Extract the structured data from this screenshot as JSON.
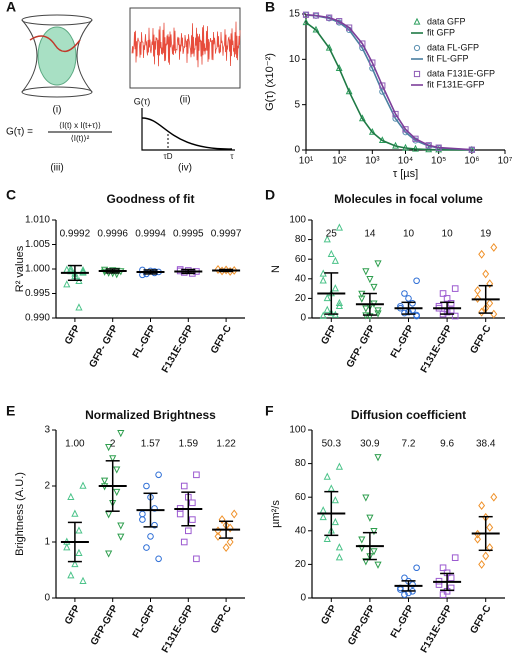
{
  "panel_a": {
    "panel": "A",
    "label_i": "(i)",
    "label_ii": "(ii)",
    "label_iii": "(iii)",
    "label_iv": "(iv)",
    "formula_lhs": "G(τ) =",
    "formula_num": "⟨I(t) x I(t+τ)⟩",
    "formula_den": "⟨I(t)⟩²",
    "g_label": "G(τ)",
    "tau_d": "τD",
    "tau": "τ"
  },
  "chart_data": [
    {
      "type": "line",
      "panel": "B",
      "y_label": "G(τ) (x10⁻²)",
      "x_label": "τ [µs]",
      "xscale": "log",
      "x": [
        10,
        20,
        50,
        100,
        200,
        500,
        1000,
        2000,
        5000,
        10000,
        20000,
        50000,
        100000,
        1000000
      ],
      "xlim": [
        10,
        10000000
      ],
      "xticks": [
        {
          "value": 10,
          "label": "10¹"
        },
        {
          "value": 100,
          "label": "10²"
        },
        {
          "value": 1000,
          "label": "10³"
        },
        {
          "value": 10000,
          "label": "10⁴"
        },
        {
          "value": 100000,
          "label": "10⁵"
        },
        {
          "value": 1000000,
          "label": "10⁶"
        },
        {
          "value": 10000000,
          "label": "10⁷"
        }
      ],
      "ylim": [
        0,
        15
      ],
      "yticks": [
        0,
        5,
        10,
        15
      ],
      "series": [
        {
          "name": "data GFP",
          "color": "#2a9d5c",
          "marker": "triangle",
          "values": [
            14.06,
            13.24,
            11.25,
            9.0,
            6.43,
            3.46,
            1.96,
            1.05,
            0.44,
            0.22,
            0.11,
            0.04,
            0.02,
            0
          ]
        },
        {
          "name": "fit GFP",
          "color": "#1f7a45",
          "marker": "line",
          "values": [
            14.06,
            13.24,
            11.25,
            9.0,
            6.43,
            3.46,
            1.96,
            1.05,
            0.44,
            0.22,
            0.11,
            0.04,
            0.02,
            0
          ]
        },
        {
          "name": "data FL-GFP",
          "color": "#5a8fb0",
          "marker": "circle",
          "values": [
            14.9,
            14.8,
            14.52,
            14.06,
            13.24,
            11.25,
            9.0,
            6.43,
            3.46,
            1.96,
            1.05,
            0.44,
            0.22,
            0.02
          ]
        },
        {
          "name": "fit FL-GFP",
          "color": "#4a7fa0",
          "marker": "line",
          "values": [
            14.9,
            14.8,
            14.52,
            14.06,
            13.24,
            11.25,
            9.0,
            6.43,
            3.46,
            1.96,
            1.05,
            0.44,
            0.22,
            0.02
          ]
        },
        {
          "name": "data F131E-GFP",
          "color": "#8e5bb5",
          "marker": "square",
          "values": [
            14.92,
            14.84,
            14.6,
            14.21,
            13.5,
            11.74,
            9.64,
            7.11,
            3.97,
            2.28,
            1.24,
            0.52,
            0.26,
            0.03
          ]
        },
        {
          "name": "fit F131E-GFP",
          "color": "#7d3f9a",
          "marker": "line",
          "values": [
            14.92,
            14.84,
            14.6,
            14.21,
            13.5,
            11.74,
            9.64,
            7.11,
            3.97,
            2.28,
            1.24,
            0.52,
            0.26,
            0.03
          ]
        }
      ]
    },
    {
      "type": "dot",
      "panel": "C",
      "title": "Goodness of fit",
      "y_label": "R² values",
      "categories": [
        "GFP",
        "GFP- GFP",
        "FL-GFP",
        "F131E-GFP",
        "GFP-C"
      ],
      "colors": [
        "#4cc38a",
        "#2e9e4e",
        "#2f6fd6",
        "#9b59d0",
        "#f0922b"
      ],
      "markers": [
        "triangle",
        "triangle-down",
        "circle",
        "square",
        "diamond"
      ],
      "ylim": [
        0.99,
        1.01
      ],
      "yticks": [
        {
          "value": 0.99,
          "label": "0.990"
        },
        {
          "value": 0.995,
          "label": "0.995"
        },
        {
          "value": 1.0,
          "label": "1.000"
        },
        {
          "value": 1.005,
          "label": "1.005"
        },
        {
          "value": 1.01,
          "label": "1.010"
        }
      ],
      "values": [
        0.9992,
        0.9996,
        0.9994,
        0.9995,
        0.9997
      ],
      "errors": [
        0.0015,
        0.0004,
        0.0004,
        0.0004,
        0.0002
      ],
      "points": [
        [
          0.9992,
          0.9995,
          0.9985,
          0.9975,
          0.9998,
          0.9968,
          0.9921,
          0.999,
          1.0,
          0.9997,
          0.9994
        ],
        [
          0.9996,
          0.9993,
          0.9998,
          0.999,
          0.9999,
          0.9995,
          0.9997,
          0.9992
        ],
        [
          0.9994,
          0.999,
          0.9996,
          0.9992,
          0.9998,
          0.9988,
          0.9995
        ],
        [
          0.9995,
          0.9993,
          0.9997,
          0.9991,
          0.9999,
          0.9996
        ],
        [
          0.9997,
          0.9996,
          0.9998,
          0.9995,
          0.9999
        ]
      ]
    },
    {
      "type": "dot",
      "panel": "D",
      "title": "Molecules in focal volume",
      "y_label": "N",
      "categories": [
        "GFP",
        "GFP- GFP",
        "FL-GFP",
        "F131E-GFP",
        "GFP-C"
      ],
      "colors": [
        "#4cc38a",
        "#2e9e4e",
        "#2f6fd6",
        "#9b59d0",
        "#f0922b"
      ],
      "markers": [
        "triangle",
        "triangle-down",
        "circle",
        "square",
        "diamond"
      ],
      "ylim": [
        0,
        100
      ],
      "yticks": [
        0,
        20,
        40,
        60,
        80,
        100
      ],
      "values": [
        25,
        14,
        10,
        10,
        19
      ],
      "errors": [
        21,
        11,
        6,
        6,
        14
      ],
      "points": [
        [
          92,
          80,
          65,
          58,
          45,
          38,
          30,
          25,
          20,
          15,
          12,
          8,
          5,
          3,
          2
        ],
        [
          56,
          48,
          40,
          32,
          25,
          20,
          15,
          12,
          10,
          8,
          5,
          3,
          2
        ],
        [
          38,
          25,
          20,
          15,
          12,
          10,
          8,
          6,
          5,
          3,
          2
        ],
        [
          30,
          25,
          20,
          15,
          12,
          10,
          8,
          6,
          4,
          2
        ],
        [
          72,
          65,
          45,
          35,
          28,
          20,
          15,
          10,
          6,
          4
        ]
      ]
    },
    {
      "type": "dot",
      "panel": "E",
      "title": "Normalized Brightness",
      "y_label": "Brightness (A.U.)",
      "categories": [
        "GFP",
        "GFP-GFP",
        "FL-GFP",
        "F131E-GFP",
        "GFP-C"
      ],
      "colors": [
        "#4cc38a",
        "#2e9e4e",
        "#2f6fd6",
        "#9b59d0",
        "#f0922b"
      ],
      "markers": [
        "triangle",
        "triangle-down",
        "circle",
        "square",
        "diamond"
      ],
      "ylim": [
        0,
        3
      ],
      "yticks": [
        0,
        1,
        2,
        3
      ],
      "values": [
        1,
        2,
        1.57,
        1.59,
        1.22
      ],
      "value_labels": [
        "1.00",
        "2",
        "1.57",
        "1.59",
        "1.22"
      ],
      "errors": [
        0.35,
        0.45,
        0.3,
        0.3,
        0.15
      ],
      "points": [
        [
          2.0,
          1.8,
          1.5,
          1.2,
          1.0,
          0.9,
          0.8,
          0.6,
          0.4,
          0.3
        ],
        [
          2.95,
          2.7,
          2.5,
          2.3,
          2.1,
          2.0,
          1.9,
          1.7,
          1.5,
          1.3,
          1.1,
          0.8
        ],
        [
          2.2,
          2.0,
          1.8,
          1.6,
          1.5,
          1.4,
          1.3,
          1.1,
          0.9,
          0.7
        ],
        [
          2.2,
          2.0,
          1.8,
          1.7,
          1.6,
          1.5,
          1.4,
          1.2,
          1.0,
          0.7
        ],
        [
          1.5,
          1.4,
          1.3,
          1.25,
          1.2,
          1.1,
          1.0,
          0.9
        ]
      ]
    },
    {
      "type": "dot",
      "panel": "F",
      "title": "Diffusion coefficient",
      "y_label": "µm²/s",
      "categories": [
        "GFP",
        "GFP-GFP",
        "FL-GFP",
        "F131E-GFP",
        "GFP-C"
      ],
      "colors": [
        "#4cc38a",
        "#2e9e4e",
        "#2f6fd6",
        "#9b59d0",
        "#f0922b"
      ],
      "markers": [
        "triangle",
        "triangle-down",
        "circle",
        "square",
        "diamond"
      ],
      "ylim": [
        0,
        100
      ],
      "yticks": [
        0,
        20,
        40,
        60,
        80,
        100
      ],
      "values": [
        50.3,
        30.9,
        7.2,
        9.6,
        38.4
      ],
      "errors": [
        13,
        8,
        3,
        5,
        10
      ],
      "points": [
        [
          78,
          72,
          65,
          58,
          52,
          48,
          45,
          40,
          35,
          30,
          24
        ],
        [
          84,
          60,
          48,
          40,
          35,
          30,
          28,
          25,
          22,
          20
        ],
        [
          18,
          12,
          10,
          8,
          6,
          5,
          4,
          3,
          2
        ],
        [
          24,
          18,
          15,
          12,
          10,
          8,
          6,
          4,
          2
        ],
        [
          60,
          55,
          48,
          42,
          38,
          35,
          30,
          25,
          20
        ]
      ]
    }
  ]
}
